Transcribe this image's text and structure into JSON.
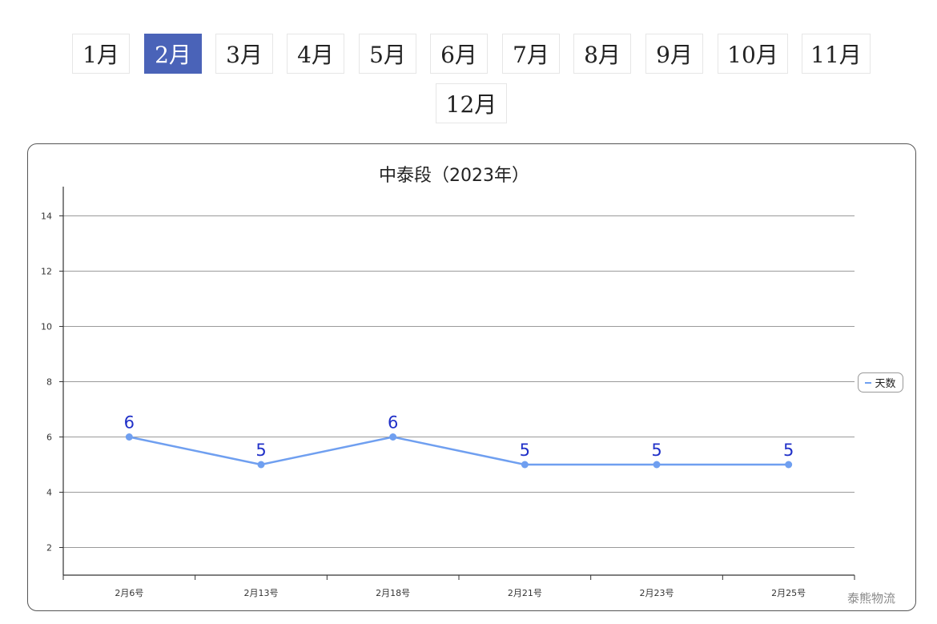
{
  "months": {
    "items": [
      "1月",
      "2月",
      "3月",
      "4月",
      "5月",
      "6月",
      "7月",
      "8月",
      "9月",
      "10月",
      "11月",
      "12月"
    ],
    "selected_index": 1
  },
  "colors": {
    "active_month": "#4a63b8",
    "series_line": "#6f9ff0",
    "data_label": "#2030c8"
  },
  "watermark": "泰熊物流",
  "chart_data": {
    "type": "line",
    "title": "中泰段（2023年）",
    "xlabel": "",
    "ylabel": "",
    "categories": [
      "2月6号",
      "2月13号",
      "2月18号",
      "2月21号",
      "2月23号",
      "2月25号"
    ],
    "series": [
      {
        "name": "天数",
        "values": [
          6,
          5,
          6,
          5,
          5,
          5
        ]
      }
    ],
    "ylim": [
      1,
      15
    ],
    "y_ticks": [
      2,
      4,
      6,
      8,
      10,
      12,
      14
    ],
    "grid": true,
    "legend": "right",
    "data_labels": true
  }
}
